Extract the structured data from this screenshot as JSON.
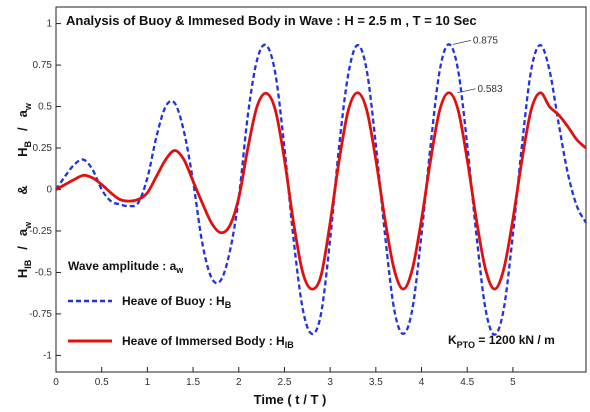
{
  "chart_data": {
    "type": "line",
    "title": "Analysis of Buoy & Immesed Body in Wave : H = 2.5 m , T = 10 Sec",
    "xlabel": "Time ( t / T )",
    "ylabel": {
      "top_num": "H",
      "top_sub": "B",
      "top_den": "a",
      "top_den_sub": "w",
      "amp": "&",
      "bot_num": "H",
      "bot_sub": "IB",
      "bot_den": "a",
      "bot_den_sub": "w",
      "slash": "/"
    },
    "xlim": [
      0,
      5.8
    ],
    "ylim": [
      -1.1,
      1.1
    ],
    "x_ticks": [
      0,
      0.5,
      1,
      1.5,
      2,
      2.5,
      3,
      3.5,
      4,
      4.5,
      5
    ],
    "x_tick_labels": [
      "0",
      "0.5",
      "1",
      "1.5",
      "2",
      "2.5",
      "3",
      "3.5",
      "4",
      "4.5",
      "5"
    ],
    "y_ticks": [
      -1,
      -0.75,
      -0.5,
      -0.25,
      0,
      0.25,
      0.5,
      0.75,
      1
    ],
    "y_tick_labels": [
      "-1",
      "-0.75",
      "-0.5",
      "-0.25",
      "0",
      "0.25",
      "0.5",
      "0.75",
      "1"
    ],
    "grid": false,
    "legend_title": {
      "main": "Wave amplitude : a",
      "sub": "w"
    },
    "series": [
      {
        "name": "Heave of Buoy : H",
        "name_sub": "B",
        "color": "#2233dd",
        "style": "dashed",
        "x": [
          0,
          0.1,
          0.2,
          0.3,
          0.4,
          0.5,
          0.6,
          0.7,
          0.8,
          0.9,
          1.0,
          1.1,
          1.2,
          1.3,
          1.4,
          1.5,
          1.6,
          1.7,
          1.8,
          1.9,
          2.0,
          2.1,
          2.2,
          2.3,
          2.4,
          2.5,
          2.6,
          2.7,
          2.8,
          2.9,
          3.0,
          3.1,
          3.2,
          3.3,
          3.4,
          3.5,
          3.6,
          3.7,
          3.8,
          3.9,
          4.0,
          4.1,
          4.2,
          4.3,
          4.4,
          4.5,
          4.6,
          4.7,
          4.8,
          4.9,
          5.0,
          5.1,
          5.2,
          5.3,
          5.4,
          5.5,
          5.6,
          5.7,
          5.8
        ],
        "y": [
          0,
          0.08,
          0.15,
          0.18,
          0.12,
          0,
          -0.07,
          -0.09,
          -0.1,
          -0.08,
          0.07,
          0.32,
          0.5,
          0.52,
          0.35,
          0.05,
          -0.32,
          -0.53,
          -0.55,
          -0.38,
          -0.05,
          0.45,
          0.78,
          0.87,
          0.7,
          0.25,
          -0.3,
          -0.72,
          -0.87,
          -0.75,
          -0.3,
          0.27,
          0.7,
          0.87,
          0.72,
          0.27,
          -0.27,
          -0.72,
          -0.87,
          -0.72,
          -0.27,
          0.27,
          0.72,
          0.875,
          0.72,
          0.27,
          -0.27,
          -0.72,
          -0.875,
          -0.72,
          -0.27,
          0.27,
          0.72,
          0.87,
          0.72,
          0.4,
          0.1,
          -0.1,
          -0.2
        ]
      },
      {
        "name": "Heave of Immersed Body : H",
        "name_sub": "IB",
        "color": "#e01010",
        "style": "solid",
        "x": [
          0,
          0.1,
          0.2,
          0.3,
          0.4,
          0.5,
          0.6,
          0.7,
          0.8,
          0.9,
          1.0,
          1.1,
          1.2,
          1.3,
          1.4,
          1.5,
          1.6,
          1.7,
          1.8,
          1.9,
          2.0,
          2.1,
          2.2,
          2.3,
          2.4,
          2.5,
          2.6,
          2.7,
          2.8,
          2.9,
          3.0,
          3.1,
          3.2,
          3.3,
          3.4,
          3.5,
          3.6,
          3.7,
          3.8,
          3.9,
          4.0,
          4.1,
          4.2,
          4.3,
          4.4,
          4.5,
          4.6,
          4.7,
          4.8,
          4.9,
          5.0,
          5.1,
          5.2,
          5.3,
          5.4,
          5.5,
          5.6,
          5.7,
          5.8
        ],
        "y": [
          0,
          0.03,
          0.06,
          0.085,
          0.07,
          0.03,
          -0.02,
          -0.06,
          -0.07,
          -0.06,
          -0.02,
          0.08,
          0.18,
          0.235,
          0.18,
          0.05,
          -0.08,
          -0.2,
          -0.26,
          -0.22,
          -0.05,
          0.25,
          0.5,
          0.58,
          0.48,
          0.18,
          -0.2,
          -0.5,
          -0.6,
          -0.52,
          -0.2,
          0.18,
          0.48,
          0.583,
          0.48,
          0.18,
          -0.18,
          -0.48,
          -0.6,
          -0.48,
          -0.18,
          0.18,
          0.48,
          0.583,
          0.48,
          0.18,
          -0.18,
          -0.48,
          -0.6,
          -0.48,
          -0.18,
          0.18,
          0.48,
          0.583,
          0.5,
          0.45,
          0.38,
          0.3,
          0.25
        ]
      }
    ],
    "annotations": [
      {
        "text": "0.875",
        "x": 4.3,
        "y": 0.875,
        "color": "#c05000"
      },
      {
        "text": "0.583",
        "x": 4.35,
        "y": 0.583,
        "color": "#c05000"
      }
    ],
    "kpto_label": {
      "main": "K",
      "sub": "PTO",
      "rest": " = 1200 kN / m"
    }
  }
}
